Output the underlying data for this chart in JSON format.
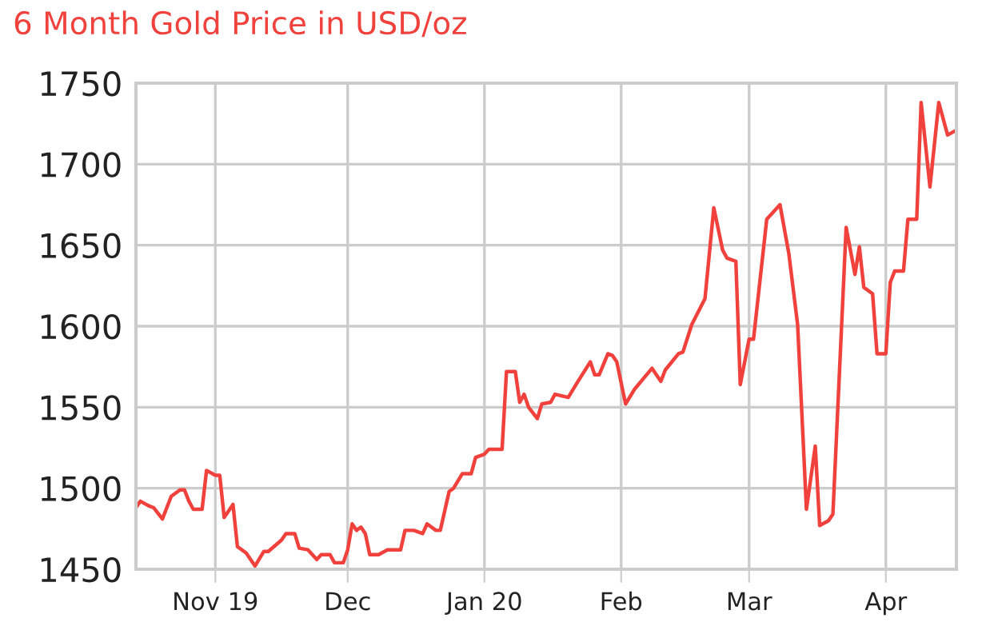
{
  "chart_data": {
    "type": "line",
    "title": "6 Month Gold Price in USD/oz",
    "x": [
      "2019-10-14",
      "2019-10-15",
      "2019-10-17",
      "2019-10-18",
      "2019-10-20",
      "2019-10-22",
      "2019-10-24",
      "2019-10-25",
      "2019-10-26",
      "2019-10-27",
      "2019-10-29",
      "2019-10-30",
      "2019-11-01",
      "2019-11-02",
      "2019-11-03",
      "2019-11-05",
      "2019-11-06",
      "2019-11-08",
      "2019-11-10",
      "2019-11-12",
      "2019-11-13",
      "2019-11-16",
      "2019-11-17",
      "2019-11-19",
      "2019-11-20",
      "2019-11-22",
      "2019-11-24",
      "2019-11-25",
      "2019-11-27",
      "2019-11-28",
      "2019-11-30",
      "2019-12-01",
      "2019-12-02",
      "2019-12-03",
      "2019-12-04",
      "2019-12-05",
      "2019-12-06",
      "2019-12-08",
      "2019-12-10",
      "2019-12-13",
      "2019-12-14",
      "2019-12-16",
      "2019-12-18",
      "2019-12-19",
      "2019-12-21",
      "2019-12-22",
      "2019-12-24",
      "2019-12-25",
      "2019-12-27",
      "2019-12-29",
      "2019-12-30",
      "2020-01-01",
      "2020-01-02",
      "2020-01-05",
      "2020-01-06",
      "2020-01-08",
      "2020-01-09",
      "2020-01-10",
      "2020-01-11",
      "2020-01-13",
      "2020-01-14",
      "2020-01-16",
      "2020-01-17",
      "2020-01-20",
      "2020-01-22",
      "2020-01-25",
      "2020-01-26",
      "2020-01-27",
      "2020-01-29",
      "2020-01-30",
      "2020-01-31",
      "2020-02-02",
      "2020-02-04",
      "2020-02-08",
      "2020-02-10",
      "2020-02-11",
      "2020-02-14",
      "2020-02-15",
      "2020-02-17",
      "2020-02-20",
      "2020-02-22",
      "2020-02-24",
      "2020-02-25",
      "2020-02-27",
      "2020-02-28",
      "2020-03-01",
      "2020-03-02",
      "2020-03-05",
      "2020-03-08",
      "2020-03-10",
      "2020-03-12",
      "2020-03-14",
      "2020-03-16",
      "2020-03-17",
      "2020-03-19",
      "2020-03-20",
      "2020-03-23",
      "2020-03-25",
      "2020-03-26",
      "2020-03-27",
      "2020-03-29",
      "2020-03-30",
      "2020-04-01",
      "2020-04-02",
      "2020-04-03",
      "2020-04-05",
      "2020-04-06",
      "2020-04-08",
      "2020-04-09",
      "2020-04-11",
      "2020-04-13",
      "2020-04-15",
      "2020-04-17"
    ],
    "series": [
      {
        "color": "#f0413c",
        "values": [
          1488,
          1492,
          1489,
          1488,
          1481,
          1495,
          1499,
          1499,
          1492,
          1487,
          1487,
          1511,
          1508,
          1508,
          1482,
          1490,
          1464,
          1460,
          1452,
          1461,
          1461,
          1468,
          1472,
          1472,
          1463,
          1462,
          1456,
          1459,
          1459,
          1454,
          1454,
          1462,
          1478,
          1474,
          1476,
          1472,
          1459,
          1459,
          1462,
          1462,
          1474,
          1474,
          1472,
          1478,
          1474,
          1474,
          1498,
          1500,
          1509,
          1509,
          1519,
          1521,
          1524,
          1524,
          1572,
          1572,
          1553,
          1558,
          1550,
          1543,
          1552,
          1553,
          1558,
          1556,
          1565,
          1578,
          1570,
          1570,
          1583,
          1582,
          1578,
          1552,
          1561,
          1574,
          1566,
          1573,
          1583,
          1584,
          1601,
          1617,
          1673,
          1647,
          1642,
          1640,
          1564,
          1592,
          1592,
          1666,
          1675,
          1645,
          1601,
          1487,
          1526,
          1477,
          1480,
          1484,
          1661,
          1632,
          1649,
          1624,
          1620,
          1583,
          1583,
          1627,
          1634,
          1634,
          1666,
          1666,
          1738,
          1686,
          1738,
          1718,
          1721
        ]
      }
    ],
    "xlim": [
      "2019-10-14",
      "2020-04-17"
    ],
    "xticks": [
      {
        "value": "2019-11-01",
        "label": "Nov 19"
      },
      {
        "value": "2019-12-01",
        "label": "Dec"
      },
      {
        "value": "2020-01-01",
        "label": "Jan 20"
      },
      {
        "value": "2020-02-01",
        "label": "Feb"
      },
      {
        "value": "2020-03-01",
        "label": "Mar"
      },
      {
        "value": "2020-04-01",
        "label": "Apr"
      }
    ],
    "ylim": [
      1450,
      1750
    ],
    "yticks": [
      1450,
      1500,
      1550,
      1600,
      1650,
      1700,
      1750
    ],
    "grid": true,
    "marker": "none",
    "line_style": "solid"
  }
}
